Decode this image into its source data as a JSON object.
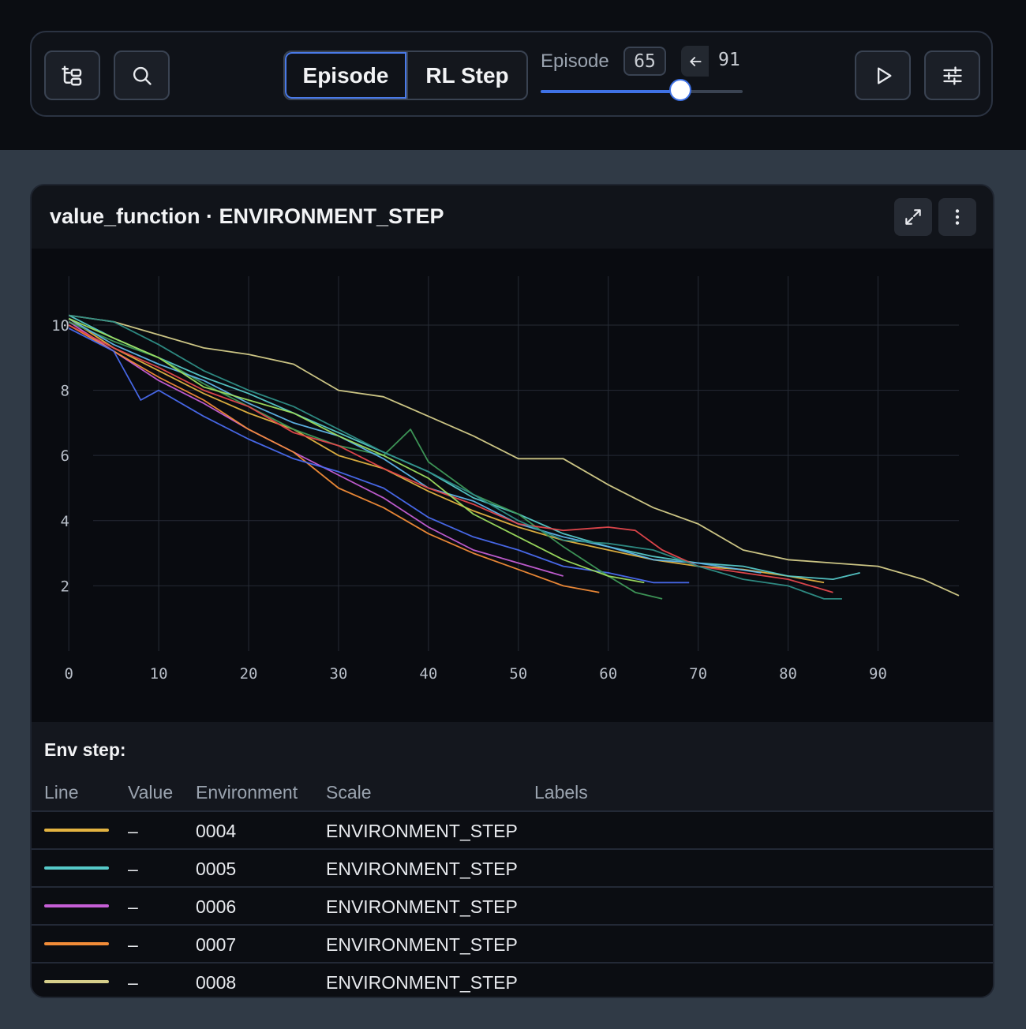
{
  "toolbar": {
    "segments": [
      "Episode",
      "RL Step"
    ],
    "active_segment": "Episode",
    "episode_label": "Episode",
    "episode_value": "65",
    "episode_max": "91",
    "slider_fraction": 0.69
  },
  "panel": {
    "title": "value_function · ENVIRONMENT_STEP"
  },
  "chart_data": {
    "type": "line",
    "title": "",
    "xlabel": "",
    "ylabel": "",
    "xlim": [
      -3,
      99
    ],
    "ylim": [
      0,
      11.5
    ],
    "xticks": [
      0,
      10,
      20,
      30,
      40,
      50,
      60,
      70,
      80,
      90
    ],
    "yticks": [
      2,
      4,
      6,
      8,
      10
    ],
    "grid": true,
    "series": [
      {
        "color": "#e3b341",
        "x": [
          0,
          5,
          10,
          15,
          20,
          25,
          30,
          35,
          40,
          45,
          50,
          55,
          60,
          65,
          70,
          75,
          80,
          84
        ],
        "y": [
          10.2,
          9.3,
          8.6,
          7.9,
          7.3,
          6.8,
          6.0,
          5.6,
          4.9,
          4.3,
          3.8,
          3.4,
          3.1,
          2.8,
          2.6,
          2.5,
          2.3,
          2.1
        ]
      },
      {
        "color": "#56c9c9",
        "x": [
          0,
          5,
          10,
          15,
          20,
          25,
          30,
          35,
          40,
          45,
          50,
          55,
          60,
          65,
          70,
          75,
          80,
          85,
          88
        ],
        "y": [
          10.3,
          9.6,
          9.0,
          8.4,
          7.9,
          7.3,
          6.7,
          6.1,
          5.5,
          4.7,
          4.2,
          3.6,
          3.2,
          2.9,
          2.7,
          2.6,
          2.3,
          2.2,
          2.4
        ]
      },
      {
        "color": "#c65fd6",
        "x": [
          0,
          5,
          10,
          15,
          20,
          25,
          30,
          35,
          40,
          45,
          50,
          55
        ],
        "y": [
          10.1,
          9.2,
          8.3,
          7.6,
          6.8,
          6.1,
          5.4,
          4.7,
          3.8,
          3.1,
          2.7,
          2.3
        ]
      },
      {
        "color": "#f28c38",
        "x": [
          0,
          5,
          10,
          15,
          20,
          25,
          30,
          35,
          40,
          45,
          50,
          55,
          59
        ],
        "y": [
          10.0,
          9.2,
          8.4,
          7.7,
          6.8,
          6.1,
          5.0,
          4.4,
          3.6,
          3.0,
          2.5,
          2.0,
          1.8
        ]
      },
      {
        "color": "#d6cf8b",
        "x": [
          0,
          5,
          10,
          15,
          20,
          25,
          30,
          35,
          40,
          45,
          50,
          55,
          60,
          65,
          70,
          75,
          80,
          85,
          90,
          95,
          99
        ],
        "y": [
          10.3,
          10.1,
          9.7,
          9.3,
          9.1,
          8.8,
          8.0,
          7.8,
          7.2,
          6.6,
          5.9,
          5.9,
          5.1,
          4.4,
          3.9,
          3.1,
          2.8,
          2.7,
          2.6,
          2.2,
          1.7
        ]
      },
      {
        "color": "#4a6cf0",
        "x": [
          0,
          5,
          8,
          10,
          15,
          20,
          25,
          30,
          35,
          40,
          45,
          50,
          55,
          60,
          65,
          69
        ],
        "y": [
          9.9,
          9.2,
          7.7,
          8.0,
          7.2,
          6.5,
          5.9,
          5.5,
          5.0,
          4.1,
          3.5,
          3.1,
          2.6,
          2.4,
          2.1,
          2.1
        ]
      },
      {
        "color": "#3f9a5a",
        "x": [
          0,
          5,
          10,
          15,
          20,
          25,
          30,
          35,
          38,
          40,
          45,
          50,
          55,
          60,
          63,
          66
        ],
        "y": [
          10.1,
          9.5,
          9.0,
          8.2,
          7.5,
          6.8,
          6.3,
          6.0,
          6.8,
          5.8,
          4.8,
          4.2,
          3.2,
          2.3,
          1.8,
          1.6
        ]
      },
      {
        "color": "#5fb5e8",
        "x": [
          0,
          5,
          10,
          15,
          20,
          25,
          30,
          35,
          40,
          45,
          50,
          55,
          60,
          65,
          70,
          77
        ],
        "y": [
          10.2,
          9.4,
          8.8,
          8.3,
          7.6,
          7.0,
          6.6,
          5.9,
          5.0,
          4.6,
          3.9,
          3.5,
          3.2,
          2.8,
          2.7,
          2.4
        ]
      },
      {
        "color": "#e5484d",
        "x": [
          0,
          5,
          10,
          15,
          20,
          25,
          30,
          35,
          40,
          45,
          50,
          55,
          60,
          63,
          66,
          70,
          75,
          80,
          85
        ],
        "y": [
          10.0,
          9.3,
          8.7,
          8.0,
          7.5,
          6.7,
          6.3,
          5.6,
          5.0,
          4.5,
          3.9,
          3.7,
          3.8,
          3.7,
          3.1,
          2.6,
          2.4,
          2.2,
          1.8
        ]
      },
      {
        "color": "#9ede5f",
        "x": [
          0,
          5,
          10,
          15,
          20,
          25,
          30,
          35,
          40,
          45,
          50,
          55,
          60,
          64
        ],
        "y": [
          10.2,
          9.6,
          9.0,
          8.1,
          7.7,
          7.3,
          6.6,
          6.0,
          5.3,
          4.2,
          3.5,
          2.8,
          2.3,
          2.1
        ]
      },
      {
        "color": "#2f8f87",
        "x": [
          0,
          5,
          10,
          15,
          20,
          25,
          30,
          35,
          40,
          45,
          50,
          55,
          60,
          65,
          70,
          75,
          80,
          84,
          86
        ],
        "y": [
          10.3,
          10.1,
          9.4,
          8.6,
          8.0,
          7.5,
          6.8,
          6.1,
          5.5,
          4.8,
          4.0,
          3.4,
          3.3,
          3.1,
          2.6,
          2.2,
          2.0,
          1.6,
          1.6
        ]
      }
    ]
  },
  "legend": {
    "title": "Env step:",
    "columns": [
      "Line",
      "Value",
      "Environment",
      "Scale",
      "Labels"
    ],
    "rows": [
      {
        "color": "#e3b341",
        "value": "–",
        "environment": "0004",
        "scale": "ENVIRONMENT_STEP",
        "labels": ""
      },
      {
        "color": "#56c9c9",
        "value": "–",
        "environment": "0005",
        "scale": "ENVIRONMENT_STEP",
        "labels": ""
      },
      {
        "color": "#c65fd6",
        "value": "–",
        "environment": "0006",
        "scale": "ENVIRONMENT_STEP",
        "labels": ""
      },
      {
        "color": "#f28c38",
        "value": "–",
        "environment": "0007",
        "scale": "ENVIRONMENT_STEP",
        "labels": ""
      },
      {
        "color": "#d6cf8b",
        "value": "–",
        "environment": "0008",
        "scale": "ENVIRONMENT_STEP",
        "labels": ""
      }
    ]
  },
  "icons": {
    "tree": "tree-view-icon",
    "search": "search-icon",
    "back_arrow": "arrow-left-icon",
    "play": "play-icon",
    "settings": "sliders-icon",
    "expand": "expand-icon",
    "menu": "more-vertical-icon"
  }
}
